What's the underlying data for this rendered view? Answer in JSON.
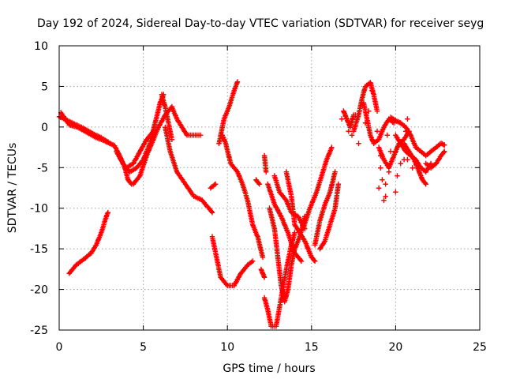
{
  "chart_data": {
    "type": "scatter",
    "title": "Day 192 of 2024, Sidereal Day-to-day VTEC variation (SDTVAR) for receiver seyg",
    "xlabel": "GPS time / hours",
    "ylabel": "SDTVAR / TECUs",
    "xlim": [
      0,
      25
    ],
    "ylim": [
      -25,
      10
    ],
    "xticks": [
      "0",
      "5",
      "10",
      "15",
      "20",
      "25"
    ],
    "yticks": [
      "-25",
      "-20",
      "-15",
      "-10",
      "-5",
      "0",
      "5",
      "10"
    ],
    "grid": true,
    "marker": "+",
    "series": [
      {
        "name": "SDTVAR",
        "color": "#ff0000",
        "tracks": [
          [
            [
              0.0,
              1.3
            ],
            [
              0.5,
              0.8
            ],
            [
              1.0,
              0.3
            ],
            [
              1.5,
              -0.2
            ],
            [
              2.0,
              -0.8
            ],
            [
              2.5,
              -1.3
            ],
            [
              2.9,
              -1.8
            ]
          ],
          [
            [
              0.1,
              1.8
            ],
            [
              0.6,
              0.3
            ],
            [
              1.1,
              0.0
            ],
            [
              1.6,
              -0.6
            ],
            [
              2.1,
              -1.2
            ],
            [
              2.6,
              -1.6
            ],
            [
              3.0,
              -2.0
            ]
          ],
          [
            [
              3.0,
              -2.0
            ],
            [
              3.3,
              -2.3
            ],
            [
              3.6,
              -3.5
            ],
            [
              3.9,
              -5.0
            ],
            [
              4.1,
              -6.5
            ],
            [
              4.3,
              -7.0
            ]
          ],
          [
            [
              3.4,
              -3.0
            ],
            [
              3.8,
              -4.5
            ],
            [
              4.2,
              -5.5
            ],
            [
              4.6,
              -5.0
            ],
            [
              5.0,
              -4.0
            ],
            [
              5.4,
              -2.0
            ],
            [
              5.7,
              0.5
            ],
            [
              6.0,
              3.0
            ],
            [
              6.2,
              4.0
            ]
          ],
          [
            [
              4.4,
              -7.0
            ],
            [
              4.8,
              -6.0
            ],
            [
              5.2,
              -3.5
            ],
            [
              5.6,
              -1.5
            ],
            [
              5.9,
              0.0
            ],
            [
              6.3,
              1.5
            ],
            [
              6.7,
              2.5
            ],
            [
              7.0,
              1.0
            ]
          ],
          [
            [
              4.0,
              -5.0
            ],
            [
              4.4,
              -4.5
            ],
            [
              4.8,
              -3.0
            ],
            [
              5.2,
              -1.5
            ],
            [
              5.6,
              -0.5
            ]
          ],
          [
            [
              6.1,
              4.0
            ],
            [
              6.3,
              2.5
            ],
            [
              6.5,
              0.5
            ],
            [
              6.7,
              -1.5
            ]
          ],
          [
            [
              7.0,
              1.0
            ],
            [
              7.3,
              0.0
            ],
            [
              7.6,
              -1.0
            ],
            [
              8.0,
              -1.0
            ],
            [
              8.4,
              -1.0
            ]
          ],
          [
            [
              6.3,
              0.0
            ],
            [
              6.6,
              -3.0
            ],
            [
              7.0,
              -5.5
            ],
            [
              7.5,
              -7.0
            ],
            [
              8.0,
              -8.5
            ],
            [
              8.5,
              -9.0
            ],
            [
              8.9,
              -10.0
            ],
            [
              9.1,
              -10.5
            ]
          ],
          [
            [
              0.6,
              -18.0
            ],
            [
              1.0,
              -17.0
            ],
            [
              1.5,
              -16.2
            ],
            [
              1.9,
              -15.5
            ],
            [
              2.2,
              -14.5
            ],
            [
              2.5,
              -13.0
            ],
            [
              2.8,
              -11.0
            ],
            [
              2.9,
              -10.5
            ]
          ],
          [
            [
              9.0,
              -7.5
            ],
            [
              9.3,
              -7.0
            ]
          ],
          [
            [
              9.7,
              -1.0
            ],
            [
              9.9,
              -2.0
            ],
            [
              10.2,
              -4.5
            ],
            [
              10.6,
              -5.5
            ],
            [
              10.9,
              -7.0
            ],
            [
              11.2,
              -9.0
            ],
            [
              11.5,
              -12.0
            ],
            [
              11.8,
              -13.5
            ],
            [
              12.1,
              -16.0
            ]
          ],
          [
            [
              9.5,
              -2.0
            ],
            [
              9.8,
              1.0
            ],
            [
              10.1,
              2.5
            ],
            [
              10.4,
              4.5
            ],
            [
              10.6,
              5.6
            ]
          ],
          [
            [
              9.1,
              -13.5
            ],
            [
              9.4,
              -16.5
            ],
            [
              9.6,
              -18.5
            ],
            [
              10.0,
              -19.5
            ],
            [
              10.4,
              -19.5
            ],
            [
              10.8,
              -18.0
            ],
            [
              11.2,
              -17.0
            ],
            [
              11.5,
              -16.5
            ]
          ],
          [
            [
              11.7,
              -6.5
            ],
            [
              11.9,
              -7.0
            ]
          ],
          [
            [
              12.2,
              -3.5
            ],
            [
              12.3,
              -5.5
            ]
          ],
          [
            [
              12.0,
              -17.5
            ],
            [
              12.2,
              -18.5
            ]
          ],
          [
            [
              12.2,
              -21.0
            ],
            [
              12.4,
              -22.5
            ],
            [
              12.6,
              -24.5
            ],
            [
              12.9,
              -24.5
            ],
            [
              13.2,
              -21.0
            ],
            [
              13.5,
              -17.5
            ],
            [
              13.8,
              -14.5
            ],
            [
              14.0,
              -13.0
            ]
          ],
          [
            [
              12.5,
              -10.0
            ],
            [
              12.8,
              -12.5
            ],
            [
              13.0,
              -16.0
            ],
            [
              13.2,
              -19.5
            ],
            [
              13.4,
              -21.5
            ],
            [
              13.6,
              -20.0
            ],
            [
              13.8,
              -17.0
            ],
            [
              14.0,
              -15.0
            ],
            [
              14.3,
              -13.5
            ],
            [
              14.6,
              -11.0
            ]
          ],
          [
            [
              12.4,
              -7.0
            ],
            [
              12.8,
              -9.5
            ],
            [
              13.2,
              -11.0
            ],
            [
              13.6,
              -13.0
            ],
            [
              14.0,
              -15.5
            ],
            [
              14.4,
              -16.5
            ]
          ],
          [
            [
              12.8,
              -6.0
            ],
            [
              13.1,
              -8.0
            ],
            [
              13.5,
              -9.0
            ],
            [
              13.8,
              -10.5
            ],
            [
              14.2,
              -11.0
            ],
            [
              14.6,
              -12.5
            ]
          ],
          [
            [
              13.5,
              -5.5
            ],
            [
              13.8,
              -8.5
            ],
            [
              14.0,
              -12.0
            ],
            [
              14.3,
              -13.0
            ],
            [
              14.6,
              -14.0
            ],
            [
              15.0,
              -16.0
            ],
            [
              15.2,
              -16.5
            ]
          ],
          [
            [
              14.5,
              -12.5
            ],
            [
              14.9,
              -10.0
            ],
            [
              15.3,
              -8.0
            ],
            [
              15.6,
              -6.0
            ],
            [
              15.9,
              -4.0
            ],
            [
              16.2,
              -2.5
            ]
          ],
          [
            [
              15.2,
              -14.5
            ],
            [
              15.5,
              -11.5
            ],
            [
              15.8,
              -9.5
            ],
            [
              16.1,
              -8.0
            ],
            [
              16.4,
              -5.5
            ]
          ],
          [
            [
              15.5,
              -15.0
            ],
            [
              15.8,
              -14.0
            ],
            [
              16.1,
              -12.0
            ],
            [
              16.4,
              -10.0
            ],
            [
              16.6,
              -7.0
            ]
          ],
          [
            [
              16.9,
              2.0
            ],
            [
              17.1,
              1.0
            ],
            [
              17.3,
              0.0
            ],
            [
              17.5,
              1.5
            ]
          ],
          [
            [
              17.5,
              -0.5
            ],
            [
              17.8,
              1.5
            ],
            [
              18.0,
              3.5
            ],
            [
              18.2,
              5.0
            ],
            [
              18.5,
              5.5
            ],
            [
              18.7,
              4.0
            ],
            [
              18.9,
              2.0
            ]
          ],
          [
            [
              18.1,
              3.0
            ],
            [
              18.3,
              1.0
            ],
            [
              18.5,
              -1.0
            ],
            [
              18.7,
              -2.0
            ],
            [
              19.0,
              -1.5
            ],
            [
              19.3,
              0.0
            ],
            [
              19.6,
              1.0
            ],
            [
              19.9,
              0.5
            ]
          ],
          [
            [
              19.0,
              -2.5
            ],
            [
              19.3,
              -4.0
            ],
            [
              19.6,
              -5.0
            ],
            [
              19.9,
              -3.5
            ],
            [
              20.2,
              -2.0
            ],
            [
              20.5,
              -1.5
            ],
            [
              20.8,
              -0.5
            ]
          ],
          [
            [
              19.7,
              1.2
            ],
            [
              20.0,
              0.8
            ],
            [
              20.3,
              0.5
            ],
            [
              20.6,
              0.0
            ],
            [
              20.9,
              -1.0
            ],
            [
              21.2,
              -2.5
            ]
          ],
          [
            [
              20.0,
              -1.0
            ],
            [
              20.3,
              -2.0
            ],
            [
              20.6,
              -3.0
            ],
            [
              20.9,
              -3.5
            ],
            [
              21.2,
              -4.0
            ],
            [
              21.5,
              -5.0
            ],
            [
              21.8,
              -5.5
            ],
            [
              22.1,
              -4.5
            ]
          ],
          [
            [
              20.5,
              -2.0
            ],
            [
              20.8,
              -3.0
            ],
            [
              21.1,
              -4.0
            ],
            [
              21.4,
              -5.5
            ],
            [
              21.6,
              -6.5
            ],
            [
              21.8,
              -7.0
            ]
          ],
          [
            [
              21.2,
              -2.5
            ],
            [
              21.5,
              -3.0
            ],
            [
              21.8,
              -3.5
            ],
            [
              22.1,
              -3.0
            ],
            [
              22.4,
              -2.5
            ],
            [
              22.7,
              -2.0
            ],
            [
              22.9,
              -2.2
            ]
          ],
          [
            [
              21.8,
              -4.5
            ],
            [
              22.1,
              -5.0
            ],
            [
              22.4,
              -4.5
            ],
            [
              22.7,
              -3.5
            ],
            [
              22.9,
              -3.0
            ]
          ]
        ],
        "scattered": [
          [
            17.4,
            -1.0
          ],
          [
            17.6,
            1.5
          ],
          [
            17.8,
            -2.0
          ],
          [
            18.6,
            4.5
          ],
          [
            18.9,
            -0.5
          ],
          [
            19.1,
            -3.5
          ],
          [
            19.1,
            -5.0
          ],
          [
            19.2,
            -6.5
          ],
          [
            19.0,
            -7.5
          ],
          [
            19.3,
            -9.0
          ],
          [
            19.4,
            -7.0
          ],
          [
            19.4,
            -8.5
          ],
          [
            19.6,
            -5.5
          ],
          [
            19.5,
            -1.0
          ],
          [
            19.7,
            -3.0
          ],
          [
            20.0,
            -3.0
          ],
          [
            20.0,
            -8.0
          ],
          [
            20.1,
            -6.0
          ],
          [
            20.3,
            -4.5
          ],
          [
            20.5,
            -4.0
          ],
          [
            20.7,
            -4.0
          ],
          [
            21.0,
            -5.0
          ],
          [
            20.6,
            -0.5
          ],
          [
            20.7,
            1.0
          ],
          [
            18.2,
            0.5
          ],
          [
            18.4,
            2.0
          ],
          [
            17.2,
            -0.5
          ],
          [
            16.8,
            1.0
          ]
        ]
      }
    ]
  }
}
